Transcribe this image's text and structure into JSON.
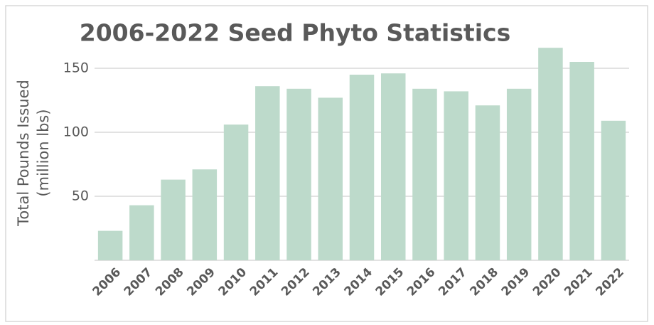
{
  "chart_data": {
    "type": "bar",
    "title": "2006-2022 Seed Phyto Statistics",
    "ylabel": [
      "Total Pounds Issued",
      "(million lbs)"
    ],
    "categories": [
      "2006",
      "2007",
      "2008",
      "2009",
      "2010",
      "2011",
      "2012",
      "2013",
      "2014",
      "2015",
      "2016",
      "2017",
      "2018",
      "2019",
      "2020",
      "2021",
      "2022"
    ],
    "values": [
      23,
      43,
      63,
      71,
      106,
      136,
      134,
      127,
      145,
      146,
      134,
      132,
      121,
      134,
      166,
      155,
      109
    ],
    "color": "#bddacb",
    "ylim": [
      0,
      170
    ],
    "yticks": [
      50,
      100,
      150
    ],
    "grid": true
  }
}
